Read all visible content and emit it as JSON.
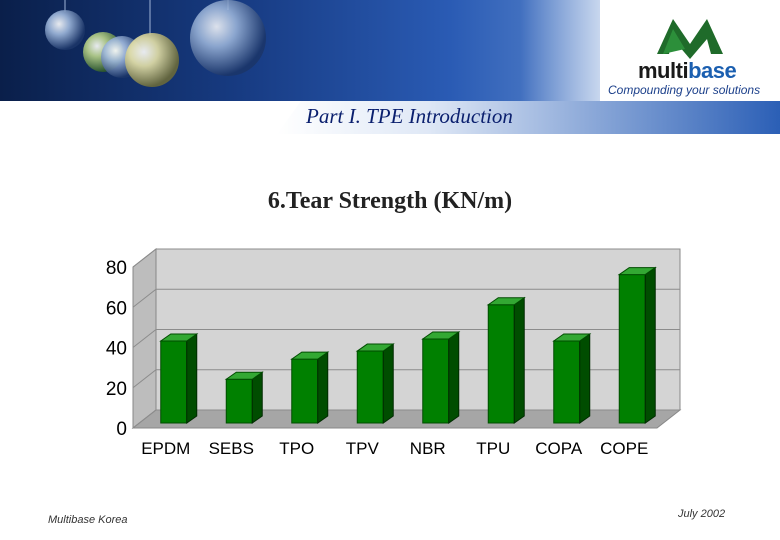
{
  "header": {
    "section_title": "Part I. TPE Introduction",
    "logo_brand_part1": "multi",
    "logo_brand_part2": "base",
    "logo_tagline": "Compounding your solutions"
  },
  "footer": {
    "company": "Multibase Korea",
    "date": "July  2002"
  },
  "colors": {
    "bar": "#008000",
    "bar_dark": "#004d00",
    "bar_top": "#33a833",
    "wall": "#d4d4d4",
    "floor": "#a6a6a6",
    "banner": "#173b82"
  },
  "chart_data": {
    "type": "bar",
    "title": "6.Tear Strength (KN/m)",
    "categories": [
      "EPDM",
      "SEBS",
      "TPO",
      "TPV",
      "NBR",
      "TPU",
      "COPA",
      "COPE"
    ],
    "values": [
      41,
      22,
      32,
      36,
      42,
      59,
      41,
      74
    ],
    "ylim": [
      0,
      80
    ],
    "yticks": [
      "0",
      "20",
      "40",
      "60",
      "80"
    ],
    "grid": true,
    "legend": "none",
    "style": "3d"
  }
}
